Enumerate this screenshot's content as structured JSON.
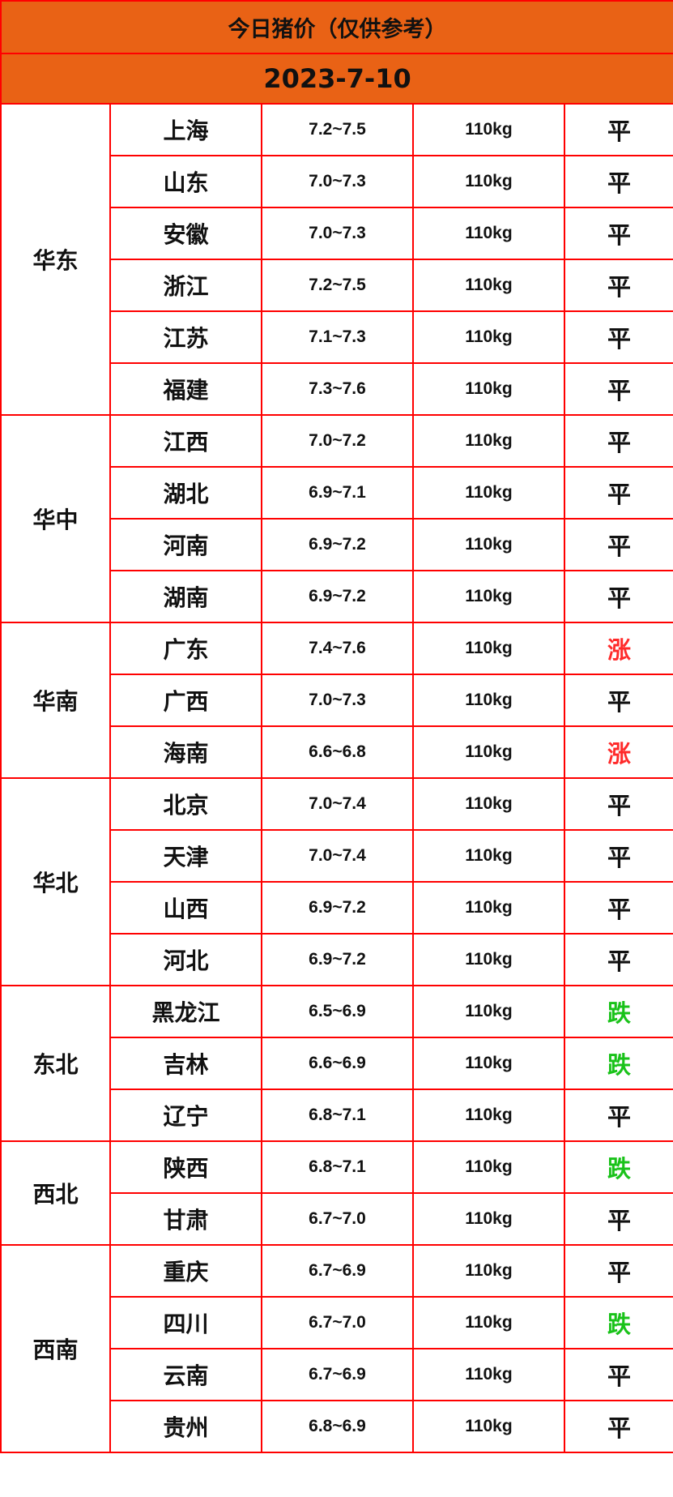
{
  "title": "今日猪价（仅供参考）",
  "date": "2023-7-10",
  "colors": {
    "header_bg": "#e96215",
    "border": "#ff0000",
    "up": "#ff2a2a",
    "down": "#19c219",
    "flat": "#111111"
  },
  "regions": [
    {
      "name": "华东",
      "rows": [
        {
          "province": "上海",
          "price": "7.2~7.5",
          "weight": "110kg",
          "trend": "平"
        },
        {
          "province": "山东",
          "price": "7.0~7.3",
          "weight": "110kg",
          "trend": "平"
        },
        {
          "province": "安徽",
          "price": "7.0~7.3",
          "weight": "110kg",
          "trend": "平"
        },
        {
          "province": "浙江",
          "price": "7.2~7.5",
          "weight": "110kg",
          "trend": "平"
        },
        {
          "province": "江苏",
          "price": "7.1~7.3",
          "weight": "110kg",
          "trend": "平"
        },
        {
          "province": "福建",
          "price": "7.3~7.6",
          "weight": "110kg",
          "trend": "平"
        }
      ]
    },
    {
      "name": "华中",
      "rows": [
        {
          "province": "江西",
          "price": "7.0~7.2",
          "weight": "110kg",
          "trend": "平"
        },
        {
          "province": "湖北",
          "price": "6.9~7.1",
          "weight": "110kg",
          "trend": "平"
        },
        {
          "province": "河南",
          "price": "6.9~7.2",
          "weight": "110kg",
          "trend": "平"
        },
        {
          "province": "湖南",
          "price": "6.9~7.2",
          "weight": "110kg",
          "trend": "平"
        }
      ]
    },
    {
      "name": "华南",
      "rows": [
        {
          "province": "广东",
          "price": "7.4~7.6",
          "weight": "110kg",
          "trend": "涨"
        },
        {
          "province": "广西",
          "price": "7.0~7.3",
          "weight": "110kg",
          "trend": "平"
        },
        {
          "province": "海南",
          "price": "6.6~6.8",
          "weight": "110kg",
          "trend": "涨"
        }
      ]
    },
    {
      "name": "华北",
      "rows": [
        {
          "province": "北京",
          "price": "7.0~7.4",
          "weight": "110kg",
          "trend": "平"
        },
        {
          "province": "天津",
          "price": "7.0~7.4",
          "weight": "110kg",
          "trend": "平"
        },
        {
          "province": "山西",
          "price": "6.9~7.2",
          "weight": "110kg",
          "trend": "平"
        },
        {
          "province": "河北",
          "price": "6.9~7.2",
          "weight": "110kg",
          "trend": "平"
        }
      ]
    },
    {
      "name": "东北",
      "rows": [
        {
          "province": "黑龙江",
          "price": "6.5~6.9",
          "weight": "110kg",
          "trend": "跌"
        },
        {
          "province": "吉林",
          "price": "6.6~6.9",
          "weight": "110kg",
          "trend": "跌"
        },
        {
          "province": "辽宁",
          "price": "6.8~7.1",
          "weight": "110kg",
          "trend": "平"
        }
      ]
    },
    {
      "name": "西北",
      "rows": [
        {
          "province": "陕西",
          "price": "6.8~7.1",
          "weight": "110kg",
          "trend": "跌"
        },
        {
          "province": "甘肃",
          "price": "6.7~7.0",
          "weight": "110kg",
          "trend": "平"
        }
      ]
    },
    {
      "name": "西南",
      "rows": [
        {
          "province": "重庆",
          "price": "6.7~6.9",
          "weight": "110kg",
          "trend": "平"
        },
        {
          "province": "四川",
          "price": "6.7~7.0",
          "weight": "110kg",
          "trend": "跌"
        },
        {
          "province": "云南",
          "price": "6.7~6.9",
          "weight": "110kg",
          "trend": "平"
        },
        {
          "province": "贵州",
          "price": "6.8~6.9",
          "weight": "110kg",
          "trend": "平"
        }
      ]
    }
  ]
}
